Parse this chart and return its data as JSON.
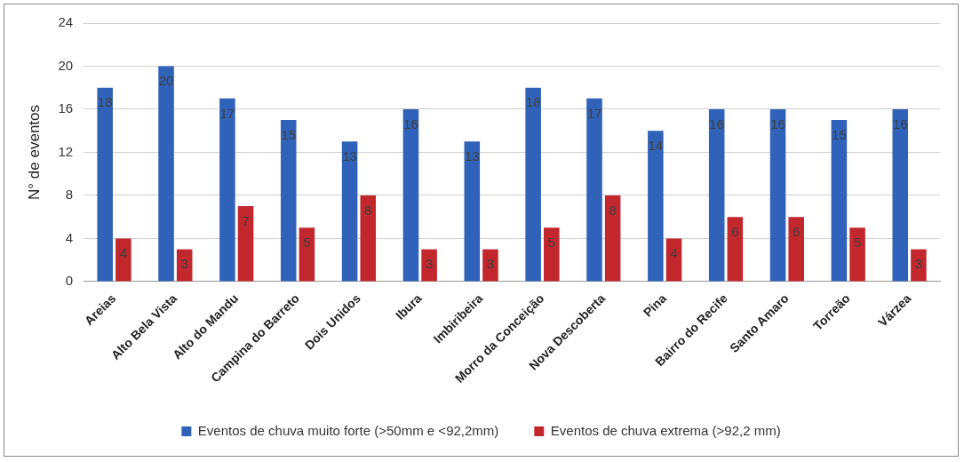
{
  "chart_data": {
    "type": "bar",
    "ylabel": "N° de eventos",
    "categories": [
      "Areias",
      "Alto Bela Vista",
      "Alto do Mandu",
      "Campina do Barreto",
      "Dois Unidos",
      "Ibura",
      "Imbiribeira",
      "Morro da Conceição",
      "Nova Descoberta",
      "Pina",
      "Bairro do Recife",
      "Santo Amaro",
      "Torreão",
      "Várzea"
    ],
    "series": [
      {
        "name": "Eventos de chuva muito forte (>50mm e <92,2mm)",
        "color": "#2f62b8",
        "values": [
          18,
          20,
          17,
          15,
          13,
          16,
          13,
          18,
          17,
          14,
          16,
          16,
          15,
          16
        ]
      },
      {
        "name": "Eventos de chuva extrema (>92,2 mm)",
        "color": "#c1272d",
        "values": [
          4,
          3,
          7,
          5,
          8,
          3,
          3,
          5,
          8,
          4,
          6,
          6,
          5,
          3
        ]
      }
    ],
    "ylim": [
      0,
      24
    ],
    "yticks": [
      0,
      4,
      8,
      12,
      16,
      20,
      24
    ],
    "grid": "y",
    "legend": "bottom",
    "data_labels": true
  }
}
